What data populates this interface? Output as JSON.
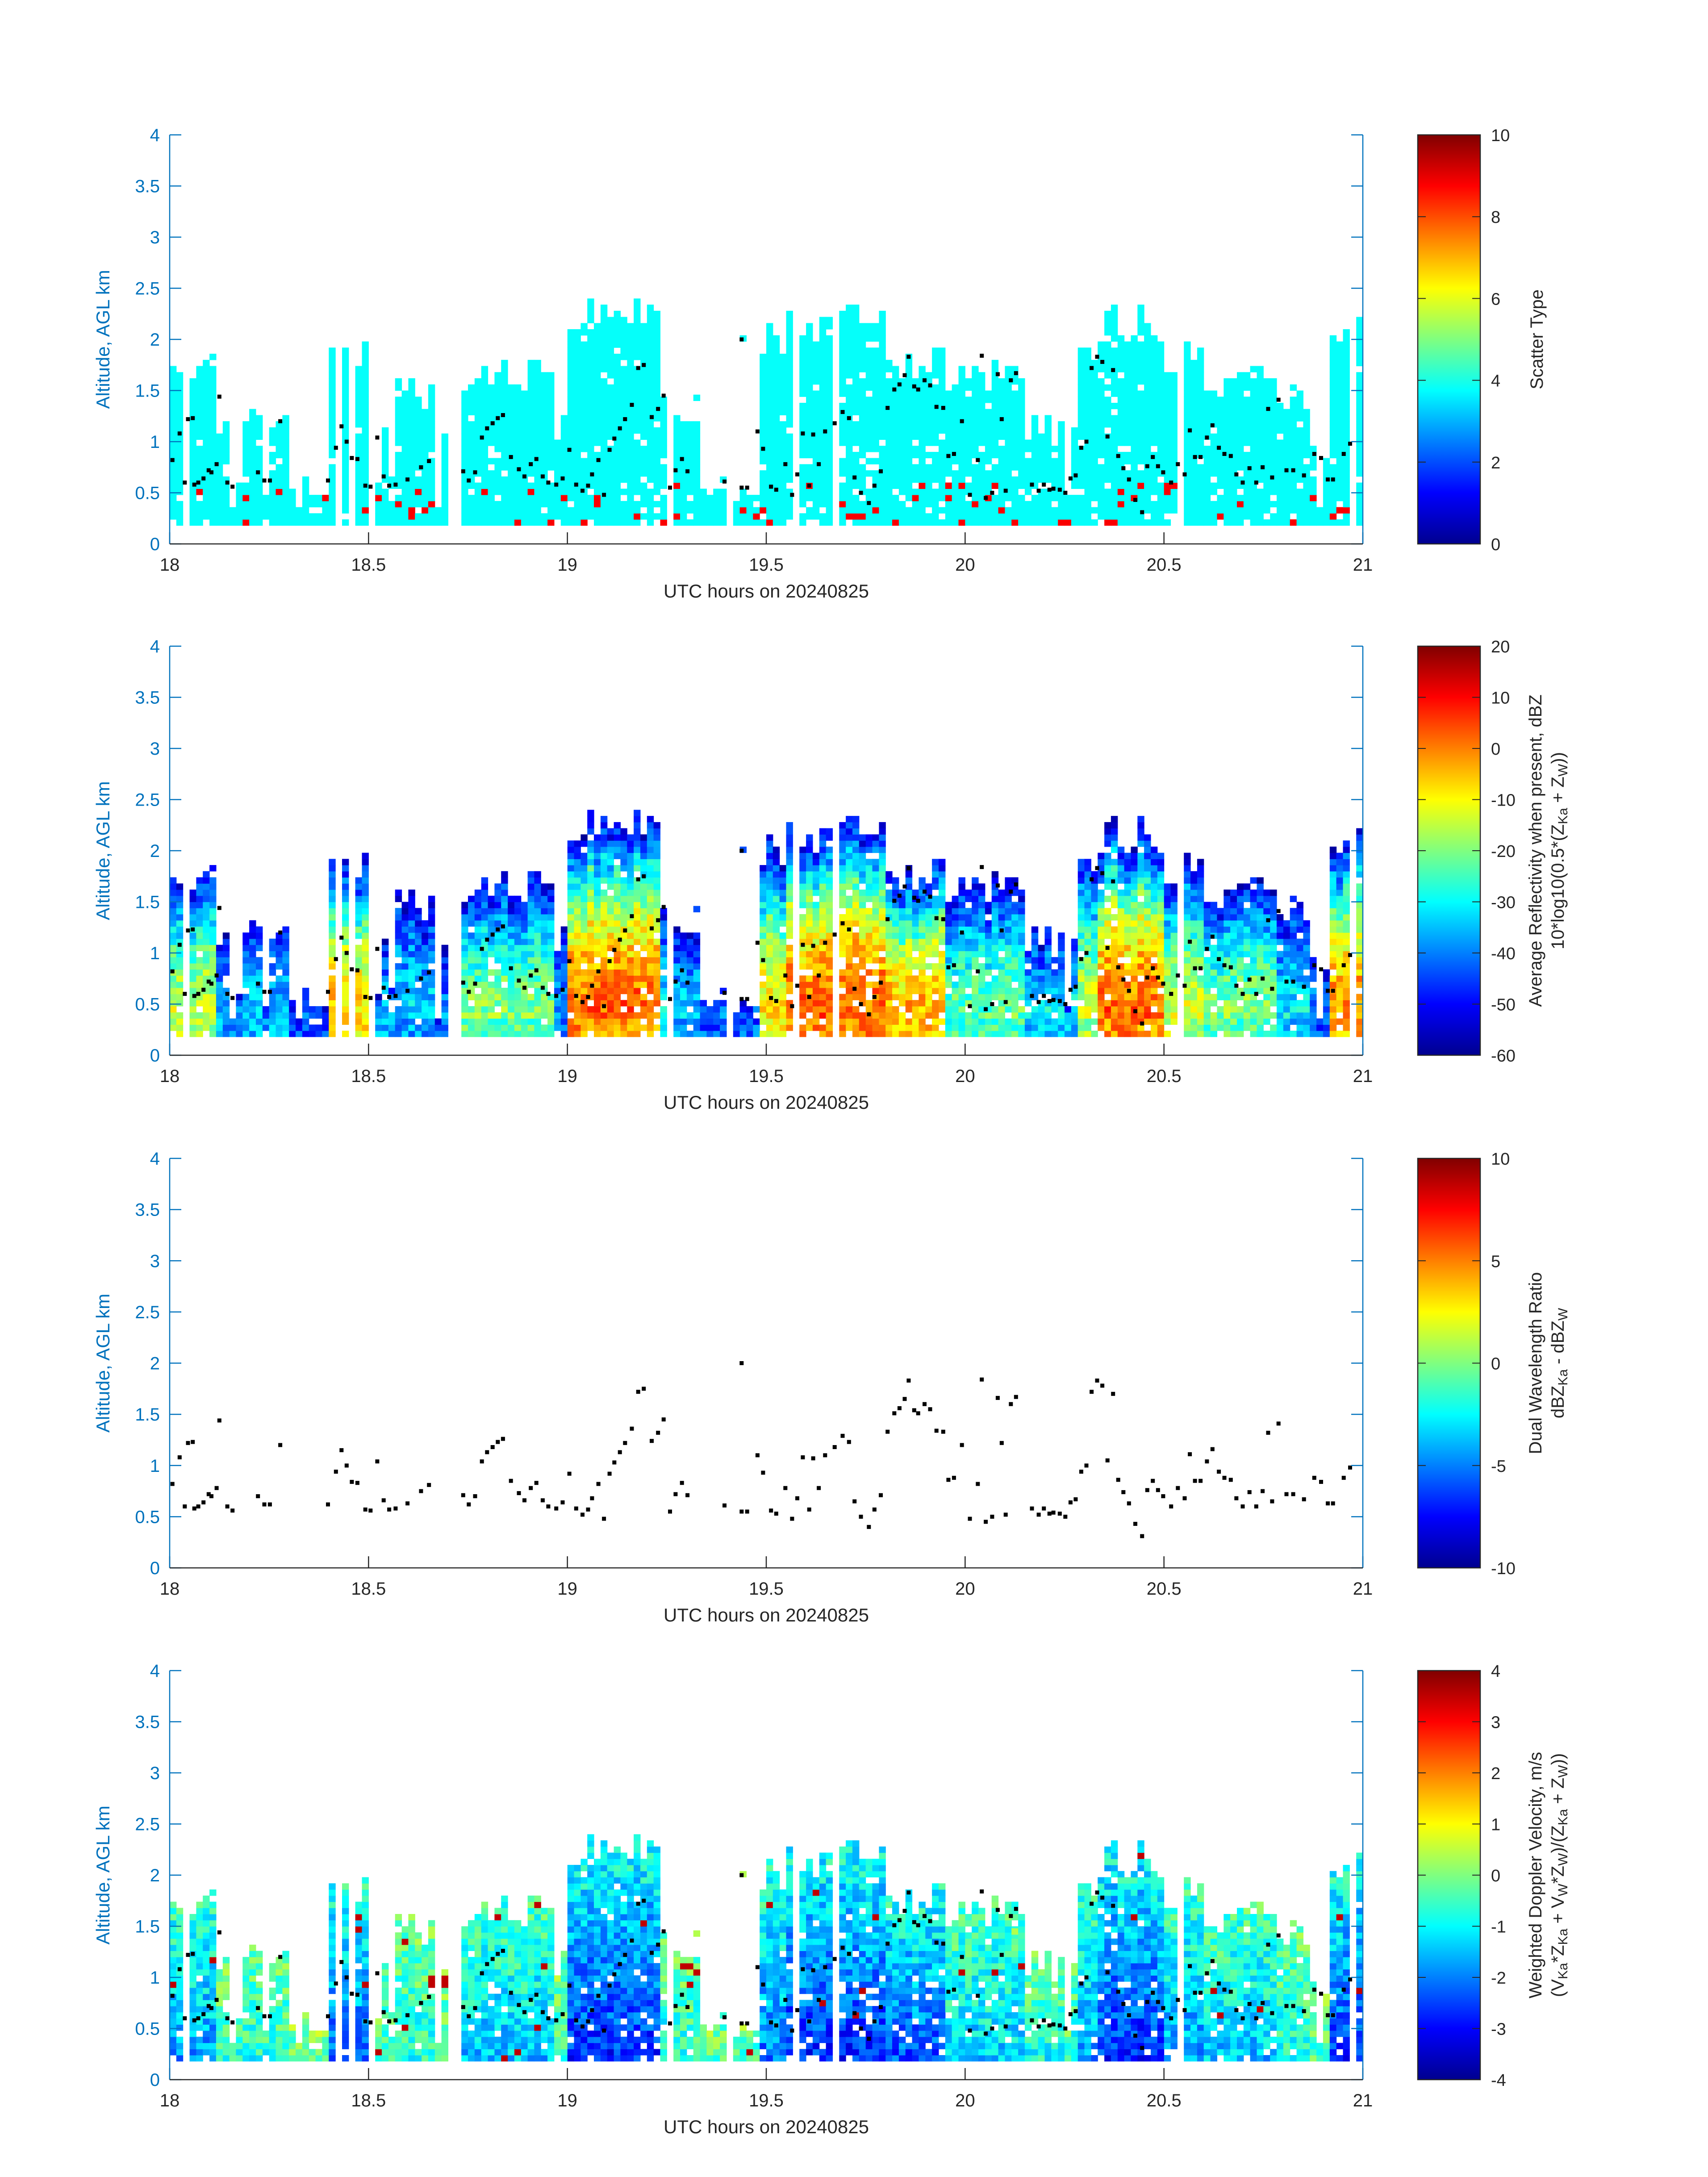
{
  "figure": {
    "x_title": "UTC hours on 20240825",
    "y_title": "Altitude, AGL km",
    "x_ticks": [
      "18",
      "18.5",
      "19",
      "19.5",
      "20",
      "20.5",
      "21"
    ],
    "y_ticks": [
      "0",
      "0.5",
      "1",
      "1.5",
      "2",
      "2.5",
      "3",
      "3.5",
      "4"
    ],
    "axis_color": "#0072bd"
  },
  "chart_data": [
    {
      "type": "heatmap",
      "title": "Scatter Type",
      "colorbar_label": "Scatter Type",
      "colorbar_ticks": [
        "0",
        "2",
        "4",
        "6",
        "8",
        "10"
      ],
      "clim": [
        0,
        10
      ],
      "xlabel": "UTC hours on 20240825",
      "ylabel": "Altitude, AGL km",
      "xlim": [
        18,
        21
      ],
      "ylim": [
        0,
        4
      ],
      "dominant_value": 3.8,
      "minor_value": 8.8,
      "note": "Cloud echo mostly classified ~3.8 (cyan) with scattered ~8.8 (orange-red) columns near the surface"
    },
    {
      "type": "heatmap",
      "title": "Average Reflectivity",
      "colorbar_label_1": "Average Reflectivity when present, dBZ",
      "colorbar_label_2": "10*log10(0.5*(Z",
      "colorbar_label_2_sub1": "Ka",
      "colorbar_label_2_mid": " + Z",
      "colorbar_label_2_sub2": "W",
      "colorbar_label_2_end": "))",
      "colorbar_ticks": [
        "-60",
        "-50",
        "-40",
        "-30",
        "-20",
        "-10",
        "0",
        "10",
        "20"
      ],
      "clim": [
        -60,
        20
      ],
      "xlabel": "UTC hours on 20240825",
      "ylabel": "Altitude, AGL km",
      "xlim": [
        18,
        21
      ],
      "ylim": [
        0,
        4
      ]
    },
    {
      "type": "scatter",
      "title": "Dual Wavelength Ratio",
      "colorbar_label_1": "Dual Wavelength Ratio",
      "colorbar_label_2": "dBZ",
      "colorbar_label_2_sub1": "Ka",
      "colorbar_label_2_mid": " - dBZ",
      "colorbar_label_2_sub2": "W",
      "colorbar_ticks": [
        "-10",
        "-5",
        "0",
        "5",
        "10"
      ],
      "clim": [
        -10,
        10
      ],
      "xlabel": "UTC hours on 20240825",
      "ylabel": "Altitude, AGL km",
      "xlim": [
        18,
        21
      ],
      "ylim": [
        0,
        4
      ]
    },
    {
      "type": "heatmap",
      "title": "Weighted Doppler Velocity",
      "colorbar_label_1": "Weighted Doppler Velocity, m/s",
      "colorbar_label_2": "(V",
      "colorbar_label_2_sub1": "Ka",
      "colorbar_label_2_mid": "*Z",
      "colorbar_label_2_sub2": "Ka",
      "colorbar_label_2_mid2": " + V",
      "colorbar_label_2_sub3": "W",
      "colorbar_label_2_mid3": "*Z",
      "colorbar_label_2_sub4": "W",
      "colorbar_label_2_mid4": ")/(Z",
      "colorbar_label_2_sub5": "Ka",
      "colorbar_label_2_mid5": " + Z",
      "colorbar_label_2_sub6": "W",
      "colorbar_label_2_end": "))",
      "colorbar_ticks": [
        "-4",
        "-3",
        "-2",
        "-1",
        "0",
        "1",
        "2",
        "3",
        "4"
      ],
      "clim": [
        -4,
        4
      ],
      "xlabel": "UTC hours on 20240825",
      "ylabel": "Altitude, AGL km",
      "xlim": [
        18,
        21
      ],
      "ylim": [
        0,
        4
      ]
    }
  ],
  "cloud_base_points": [
    [
      18.007,
      0.82
    ],
    [
      18.025,
      1.08
    ],
    [
      18.038,
      0.6
    ],
    [
      18.046,
      1.22
    ],
    [
      18.058,
      1.23
    ],
    [
      18.062,
      0.58
    ],
    [
      18.072,
      0.6
    ],
    [
      18.085,
      0.64
    ],
    [
      18.098,
      0.72
    ],
    [
      18.105,
      0.7
    ],
    [
      18.118,
      0.78
    ],
    [
      18.125,
      1.44
    ],
    [
      18.145,
      0.6
    ],
    [
      18.158,
      0.56
    ],
    [
      18.222,
      0.7
    ],
    [
      18.238,
      0.62
    ],
    [
      18.252,
      0.62
    ],
    [
      18.278,
      1.2
    ],
    [
      18.398,
      0.62
    ],
    [
      18.418,
      0.94
    ],
    [
      18.432,
      1.15
    ],
    [
      18.445,
      1.0
    ],
    [
      18.458,
      0.84
    ],
    [
      18.472,
      0.83
    ],
    [
      18.492,
      0.57
    ],
    [
      18.505,
      0.56
    ],
    [
      18.522,
      1.04
    ],
    [
      18.538,
      0.66
    ],
    [
      18.552,
      0.57
    ],
    [
      18.568,
      0.58
    ],
    [
      18.598,
      0.63
    ],
    [
      18.632,
      0.75
    ],
    [
      18.652,
      0.81
    ],
    [
      18.738,
      0.71
    ],
    [
      18.752,
      0.62
    ],
    [
      18.768,
      0.7
    ],
    [
      18.785,
      1.04
    ],
    [
      18.798,
      1.13
    ],
    [
      18.812,
      1.18
    ],
    [
      18.825,
      1.23
    ],
    [
      18.838,
      1.26
    ],
    [
      18.858,
      0.85
    ],
    [
      18.878,
      0.73
    ],
    [
      18.892,
      0.66
    ],
    [
      18.908,
      0.78
    ],
    [
      18.922,
      0.83
    ],
    [
      18.938,
      0.66
    ],
    [
      18.952,
      0.6
    ],
    [
      18.972,
      0.58
    ],
    [
      18.988,
      0.64
    ],
    [
      19.005,
      0.92
    ],
    [
      19.022,
      0.58
    ],
    [
      19.038,
      0.52
    ],
    [
      19.052,
      0.57
    ],
    [
      19.062,
      0.68
    ],
    [
      19.078,
      0.82
    ],
    [
      19.092,
      0.48
    ],
    [
      19.106,
      0.92
    ],
    [
      19.118,
      1.03
    ],
    [
      19.132,
      1.13
    ],
    [
      19.145,
      1.22
    ],
    [
      19.162,
      1.36
    ],
    [
      19.178,
      1.72
    ],
    [
      19.192,
      1.75
    ],
    [
      19.212,
      1.24
    ],
    [
      19.228,
      1.32
    ],
    [
      19.242,
      1.45
    ],
    [
      19.258,
      0.55
    ],
    [
      19.272,
      0.72
    ],
    [
      19.288,
      0.83
    ],
    [
      19.302,
      0.71
    ],
    [
      19.395,
      0.61
    ],
    [
      19.438,
      2.0
    ],
    [
      19.438,
      0.55
    ],
    [
      19.452,
      0.55
    ],
    [
      19.478,
      1.1
    ],
    [
      19.492,
      0.93
    ],
    [
      19.512,
      0.56
    ],
    [
      19.525,
      0.53
    ],
    [
      19.548,
      0.78
    ],
    [
      19.565,
      0.48
    ],
    [
      19.578,
      0.68
    ],
    [
      19.592,
      1.08
    ],
    [
      19.608,
      0.57
    ],
    [
      19.618,
      1.07
    ],
    [
      19.632,
      0.78
    ],
    [
      19.648,
      1.1
    ],
    [
      19.672,
      1.18
    ],
    [
      19.692,
      1.29
    ],
    [
      19.708,
      1.23
    ],
    [
      19.722,
      0.65
    ],
    [
      19.738,
      0.5
    ],
    [
      19.758,
      0.4
    ],
    [
      19.772,
      0.57
    ],
    [
      19.788,
      0.71
    ],
    [
      19.805,
      1.33
    ],
    [
      19.822,
      1.51
    ],
    [
      19.835,
      1.56
    ],
    [
      19.848,
      1.65
    ],
    [
      19.858,
      1.83
    ],
    [
      19.872,
      1.54
    ],
    [
      19.882,
      1.51
    ],
    [
      19.898,
      1.6
    ],
    [
      19.912,
      1.55
    ],
    [
      19.928,
      1.34
    ],
    [
      19.945,
      1.33
    ],
    [
      19.958,
      0.86
    ],
    [
      19.972,
      0.88
    ],
    [
      19.992,
      1.2
    ],
    [
      20.012,
      0.48
    ],
    [
      20.032,
      0.82
    ],
    [
      20.042,
      1.84
    ],
    [
      20.052,
      0.45
    ],
    [
      20.068,
      0.5
    ],
    [
      20.082,
      1.66
    ],
    [
      20.092,
      1.22
    ],
    [
      20.102,
      0.52
    ],
    [
      20.115,
      1.6
    ],
    [
      20.128,
      1.67
    ],
    [
      20.168,
      0.58
    ],
    [
      20.185,
      0.52
    ],
    [
      20.198,
      0.58
    ],
    [
      20.212,
      0.53
    ],
    [
      20.222,
      0.54
    ],
    [
      20.238,
      0.53
    ],
    [
      20.252,
      0.5
    ],
    [
      20.265,
      0.64
    ],
    [
      20.278,
      0.67
    ],
    [
      20.292,
      0.94
    ],
    [
      20.305,
      1.0
    ],
    [
      20.318,
      1.72
    ],
    [
      20.332,
      1.83
    ],
    [
      20.345,
      1.78
    ],
    [
      20.358,
      1.05
    ],
    [
      20.372,
      1.7
    ],
    [
      20.385,
      0.86
    ],
    [
      20.398,
      0.74
    ],
    [
      20.412,
      0.63
    ],
    [
      20.428,
      0.43
    ],
    [
      20.445,
      0.31
    ],
    [
      20.458,
      0.76
    ],
    [
      20.472,
      0.85
    ],
    [
      20.485,
      0.76
    ],
    [
      20.498,
      0.7
    ],
    [
      20.518,
      0.6
    ],
    [
      20.535,
      0.78
    ],
    [
      20.552,
      0.68
    ],
    [
      20.565,
      1.11
    ],
    [
      20.578,
      0.85
    ],
    [
      20.592,
      0.85
    ],
    [
      20.608,
      1.04
    ],
    [
      20.622,
      1.16
    ],
    [
      20.638,
      0.94
    ],
    [
      20.652,
      0.88
    ],
    [
      20.668,
      0.86
    ],
    [
      20.682,
      0.68
    ],
    [
      20.698,
      0.6
    ],
    [
      20.715,
      0.74
    ],
    [
      20.732,
      0.6
    ],
    [
      20.748,
      0.75
    ],
    [
      20.762,
      1.32
    ],
    [
      20.772,
      0.65
    ],
    [
      20.788,
      1.41
    ],
    [
      20.808,
      0.72
    ],
    [
      20.825,
      0.72
    ],
    [
      20.852,
      0.67
    ],
    [
      20.878,
      0.88
    ],
    [
      20.895,
      0.84
    ],
    [
      20.912,
      0.63
    ],
    [
      20.925,
      0.63
    ],
    [
      20.952,
      0.88
    ],
    [
      20.968,
      0.98
    ]
  ]
}
